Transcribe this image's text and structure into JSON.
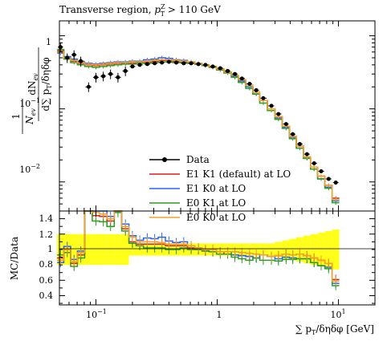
{
  "chart_data": {
    "type": "line",
    "title": "Transverse region, p_T^Z > 110 GeV",
    "title_text": "Transverse region, ",
    "title_pt": "p",
    "title_sub": "T",
    "title_sup": "Z",
    "title_cut": " > 110 GeV",
    "xlabel": "∑ pT/δηδφ [GeV]",
    "xlabel_parts": [
      "∑ p",
      "T",
      "/δηδφ [GeV]"
    ],
    "ylabel_top": "1/N_ev dN_ev/d∑pT/δηδφ",
    "ylabel_top_parts": {
      "one": "1",
      "Nev": "N",
      "ev": "ev",
      "dN": "dN",
      "d": "d",
      "sum": "∑ p",
      "T": "T",
      "rest": "/δηδφ"
    },
    "ylabel_bottom": "MC/Data",
    "xscale": "log",
    "yscale_top": "log",
    "xlim": [
      0.05,
      20
    ],
    "ylim_top": [
      0.004,
      1.6
    ],
    "ylim_bottom": [
      0.28,
      1.5
    ],
    "x_ticks": [
      "10^-1",
      "1",
      "10^1"
    ],
    "y_ticks_top": [
      "10^-2",
      "10^-1",
      "1"
    ],
    "y_ticks_bottom": [
      "0.4",
      "0.6",
      "0.8",
      "1",
      "1.2",
      "1.4"
    ],
    "legend_position": "bottom-left",
    "data": {
      "name": "Data",
      "color": "#000000",
      "x": [
        0.051,
        0.058,
        0.066,
        0.075,
        0.087,
        0.1,
        0.115,
        0.132,
        0.152,
        0.175,
        0.2,
        0.23,
        0.265,
        0.305,
        0.35,
        0.4,
        0.46,
        0.53,
        0.61,
        0.7,
        0.8,
        0.92,
        1.06,
        1.22,
        1.4,
        1.6,
        1.85,
        2.1,
        2.4,
        2.8,
        3.2,
        3.7,
        4.2,
        4.8,
        5.5,
        6.3,
        7.2,
        8.3,
        9.5
      ],
      "y": [
        0.7,
        0.5,
        0.55,
        0.45,
        0.2,
        0.27,
        0.28,
        0.3,
        0.27,
        0.33,
        0.38,
        0.4,
        0.41,
        0.42,
        0.43,
        0.44,
        0.43,
        0.42,
        0.42,
        0.41,
        0.4,
        0.38,
        0.36,
        0.33,
        0.3,
        0.26,
        0.22,
        0.18,
        0.14,
        0.11,
        0.085,
        0.062,
        0.045,
        0.033,
        0.024,
        0.018,
        0.014,
        0.011,
        0.0098
      ]
    },
    "series": [
      {
        "name": "E1 K1 (default) at LO",
        "color": "#e41a1c",
        "values": [
          0.62,
          0.5,
          0.45,
          0.42,
          0.4,
          0.39,
          0.4,
          0.41,
          0.42,
          0.42,
          0.42,
          0.43,
          0.44,
          0.45,
          0.46,
          0.46,
          0.45,
          0.44,
          0.43,
          0.41,
          0.39,
          0.37,
          0.35,
          0.31,
          0.28,
          0.24,
          0.2,
          0.16,
          0.13,
          0.1,
          0.078,
          0.058,
          0.042,
          0.031,
          0.022,
          0.016,
          0.012,
          0.009,
          0.006
        ]
      },
      {
        "name": "E1 K0 at LO",
        "color": "#2166ff",
        "values": [
          0.58,
          0.52,
          0.48,
          0.44,
          0.42,
          0.41,
          0.42,
          0.43,
          0.44,
          0.44,
          0.45,
          0.45,
          0.47,
          0.48,
          0.5,
          0.49,
          0.47,
          0.46,
          0.44,
          0.42,
          0.4,
          0.38,
          0.35,
          0.32,
          0.28,
          0.24,
          0.2,
          0.16,
          0.13,
          0.1,
          0.075,
          0.056,
          0.04,
          0.029,
          0.021,
          0.015,
          0.011,
          0.0085,
          0.0055
        ]
      },
      {
        "name": "E0 K1 at LO",
        "color": "#2e9c1f",
        "values": [
          0.65,
          0.48,
          0.43,
          0.4,
          0.38,
          0.37,
          0.38,
          0.39,
          0.4,
          0.41,
          0.41,
          0.42,
          0.42,
          0.43,
          0.44,
          0.44,
          0.43,
          0.43,
          0.42,
          0.41,
          0.39,
          0.37,
          0.34,
          0.31,
          0.27,
          0.23,
          0.19,
          0.16,
          0.12,
          0.095,
          0.072,
          0.054,
          0.039,
          0.029,
          0.021,
          0.015,
          0.011,
          0.0082,
          0.0052
        ]
      },
      {
        "name": "E0 K0 at LO",
        "color": "#f5a02a",
        "values": [
          0.6,
          0.5,
          0.46,
          0.43,
          0.41,
          0.4,
          0.41,
          0.42,
          0.43,
          0.43,
          0.44,
          0.44,
          0.45,
          0.46,
          0.47,
          0.47,
          0.46,
          0.45,
          0.44,
          0.42,
          0.4,
          0.38,
          0.35,
          0.32,
          0.29,
          0.25,
          0.21,
          0.17,
          0.13,
          0.1,
          0.078,
          0.058,
          0.042,
          0.031,
          0.022,
          0.016,
          0.012,
          0.009,
          0.0058
        ]
      }
    ],
    "ratios": [
      {
        "name": "E1 K1 (default) at LO",
        "values": [
          0.89,
          1.0,
          0.82,
          0.93,
          2.0,
          1.44,
          1.43,
          1.37,
          1.56,
          1.27,
          1.1,
          1.07,
          1.07,
          1.07,
          1.07,
          1.05,
          1.05,
          1.05,
          1.02,
          1.0,
          0.98,
          0.97,
          0.97,
          0.94,
          0.93,
          0.92,
          0.91,
          0.89,
          0.93,
          0.91,
          0.92,
          0.94,
          0.93,
          0.94,
          0.92,
          0.89,
          0.86,
          0.82,
          0.61
        ]
      },
      {
        "name": "E1 K0 at LO",
        "values": [
          0.83,
          1.04,
          0.87,
          0.98,
          2.1,
          1.52,
          1.5,
          1.43,
          1.63,
          1.33,
          1.18,
          1.12,
          1.15,
          1.14,
          1.16,
          1.11,
          1.09,
          1.1,
          1.05,
          1.02,
          1.0,
          1.0,
          0.97,
          0.97,
          0.93,
          0.92,
          0.91,
          0.89,
          0.93,
          0.91,
          0.88,
          0.9,
          0.89,
          0.88,
          0.88,
          0.83,
          0.79,
          0.77,
          0.56
        ]
      },
      {
        "name": "E0 K1 at LO",
        "values": [
          0.93,
          0.96,
          0.78,
          0.89,
          1.9,
          1.37,
          1.36,
          1.3,
          1.48,
          1.24,
          1.08,
          1.05,
          1.02,
          1.02,
          1.02,
          1.0,
          1.0,
          1.02,
          1.0,
          1.0,
          0.98,
          0.97,
          0.94,
          0.94,
          0.9,
          0.88,
          0.86,
          0.89,
          0.86,
          0.86,
          0.85,
          0.87,
          0.87,
          0.88,
          0.88,
          0.83,
          0.79,
          0.75,
          0.53
        ]
      },
      {
        "name": "E0 K0 at LO",
        "values": [
          0.86,
          1.0,
          0.84,
          0.96,
          2.05,
          1.48,
          1.46,
          1.4,
          1.59,
          1.3,
          1.16,
          1.1,
          1.1,
          1.1,
          1.09,
          1.07,
          1.07,
          1.07,
          1.05,
          1.02,
          1.0,
          1.0,
          0.97,
          0.97,
          0.97,
          0.96,
          0.95,
          0.94,
          0.93,
          0.91,
          0.92,
          0.94,
          0.93,
          0.94,
          0.92,
          0.89,
          0.86,
          0.82,
          0.59
        ]
      }
    ],
    "data_band_color": "#ffff00"
  }
}
